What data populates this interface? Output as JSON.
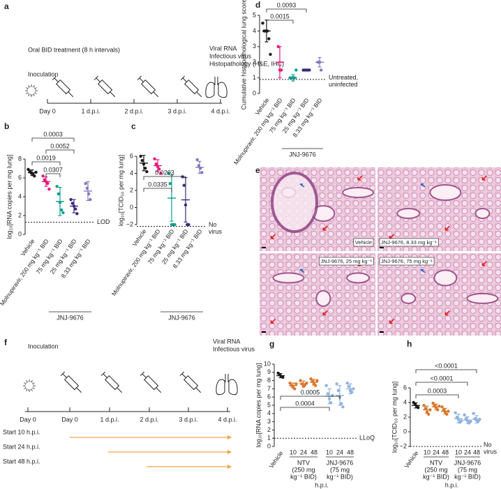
{
  "timeline_a": {
    "letter": "a",
    "treatment": "Oral BID treatment (8 h intervals)",
    "inoculation": "Inoculation",
    "readouts": [
      "Viral RNA",
      "Infectious virus",
      "Histopathology (H&E, IHC)"
    ],
    "days": [
      "Day 0",
      "1 d.p.i.",
      "2 d.p.i.",
      "3 d.p.i.",
      "4 d.p.i."
    ]
  },
  "timeline_f": {
    "letter": "f",
    "inoculation": "Inoculation",
    "readouts": [
      "Viral RNA",
      "Infectious virus"
    ],
    "days": [
      "Day 0",
      "Day 0",
      "1 d.p.i.",
      "2 d.p.i.",
      "3 d.p.i.",
      "4 d.p.i."
    ],
    "starts": [
      "Start 10 h.p.i.",
      "Start 24 h.p.i.",
      "Start 48 h.p.i."
    ],
    "arrow_color": "#f0a640"
  },
  "histology": {
    "letter": "e",
    "tiles": [
      "Vehicle",
      "JNJ-9676, 8.33 mg kg⁻¹",
      "JNJ-9676, 25 mg kg⁻¹",
      "JNJ-9676, 75 mg kg⁻¹"
    ]
  },
  "chart_data": [
    {
      "type": "dot",
      "letter": "b",
      "y_label": "log₁₀[RNA copies per mg lung]",
      "categories": [
        "Vehicle",
        "Molnupiravir, 200 mg kg⁻¹ BID",
        "75 mg kg⁻¹ BID",
        "25 mg kg⁻¹ BID",
        "8.33 mg kg⁻¹ BID"
      ],
      "colors": [
        "#1a1a1a",
        "#e5197a",
        "#0e9e8e",
        "#3a2a78",
        "#8478bd"
      ],
      "points": [
        [
          6.9,
          6.7,
          6.5,
          6.4,
          6.2,
          6.6
        ],
        [
          6.2,
          5.8,
          5.6,
          5.4,
          4.8
        ],
        [
          5.1,
          4.3,
          3.4,
          2.6,
          2.3
        ],
        [
          3.7,
          3.3,
          3.0,
          2.7,
          2.2
        ],
        [
          5.4,
          4.9,
          4.3,
          3.7
        ]
      ],
      "centers": [
        6.55,
        5.6,
        3.5,
        3.0,
        4.6
      ],
      "errors": [
        0.3,
        0.5,
        1.5,
        0.7,
        1.0
      ],
      "ylim": [
        0,
        8
      ],
      "yticks": [
        0,
        2,
        4,
        6,
        8
      ],
      "ref_line": {
        "value": 1.3,
        "label": [
          "LOD"
        ]
      },
      "comparisons": [
        "0.0003",
        "0.0052",
        "0.0019",
        "0.0307"
      ],
      "groups": [
        {
          "label": [
            "JNJ-9676"
          ]
        }
      ]
    },
    {
      "type": "dot",
      "letter": "c",
      "y_label": "log₁₀[TCID₅₀ per mg lung]",
      "categories": [
        "Vehicle",
        "Molnupiravir, 200 mg kg⁻¹ BID",
        "75 mg kg⁻¹ BID",
        "25 mg kg⁻¹ BID",
        "8.33 mg kg⁻¹ BID"
      ],
      "colors": [
        "#1a1a1a",
        "#e5197a",
        "#0e9e8e",
        "#3a2a78",
        "#8478bd"
      ],
      "points": [
        [
          6.0,
          5.5,
          5.1,
          4.6,
          4.2
        ],
        [
          5.7,
          5.1,
          4.8,
          4.5,
          4.0
        ],
        [
          4.0,
          2.8,
          -2.0,
          -2.0,
          -2.0
        ],
        [
          3.6,
          2.6,
          0.3,
          -2.0,
          -2.0
        ],
        [
          5.6,
          4.9,
          4.6,
          4.1
        ]
      ],
      "centers": [
        5.2,
        4.9,
        1.1,
        0.9,
        4.7
      ],
      "errors": [
        0.9,
        0.7,
        2.7,
        2.6,
        0.7
      ],
      "ylim": [
        -2,
        6
      ],
      "yticks": [
        {
          "value": -2,
          "label": "−2"
        },
        0,
        2,
        4,
        6
      ],
      "ref_line": {
        "value": -2.2,
        "label": [
          "No",
          "virus"
        ]
      },
      "comparisons": [
        "0.0203",
        "0.0335"
      ],
      "groups": [
        {
          "label": [
            "JNJ-9676"
          ]
        }
      ]
    },
    {
      "type": "dot",
      "letter": "d",
      "y_label": "Cumulative histopathological lung score",
      "categories": [
        "Vehicle",
        "Molnupiravir, 200 mg kg⁻¹ BID",
        "75 mg kg⁻¹ BID",
        "25 mg kg⁻¹ BID",
        "8.33 mg kg⁻¹ BID"
      ],
      "colors": [
        "#1a1a1a",
        "#e5197a",
        "#0e9e8e",
        "#3a2a78",
        "#8478bd"
      ],
      "points": [
        [
          4.5,
          4.0,
          4.0,
          4.0,
          3.5,
          2.5
        ],
        [
          3.0,
          1.5,
          1.5
        ],
        [
          1.0,
          1.0,
          1.0,
          1.0,
          1.5
        ],
        [
          1.5,
          1.5,
          1.5,
          1.5,
          1.5
        ],
        [
          2.0,
          2.0,
          1.5
        ]
      ],
      "centers": [
        4.0,
        2.0,
        1.0,
        1.5,
        2.0
      ],
      "errors": [
        0.7,
        1.0,
        0.2,
        0,
        0.3
      ],
      "ylim": [
        0,
        5
      ],
      "yticks": [
        0,
        1,
        2,
        3,
        4,
        5
      ],
      "ref_line": {
        "value": 0.9,
        "label": [
          "Untreated,",
          "uninfected"
        ]
      },
      "comparisons": [
        "0.0093",
        "0.0015"
      ],
      "groups": [
        {
          "label": [
            "JNJ-9676"
          ]
        }
      ]
    },
    {
      "type": "dot",
      "letter": "g",
      "y_label": "log₁₀[RNA copies per mg lung]",
      "x_label": "h.p.i.",
      "categories": [
        "Vehicle",
        "10",
        "24",
        "48",
        "10",
        "24",
        "48"
      ],
      "colors": [
        "#1a1a1a",
        "#d9782d",
        "#d9782d",
        "#d9782d",
        "#8fb3de",
        "#8fb3de",
        "#8fb3de"
      ],
      "points": [
        [
          8.9,
          8.7,
          8.5,
          8.4
        ],
        [
          7.7,
          7.4,
          7.2,
          7.0,
          7.6
        ],
        [
          8.0,
          7.6,
          7.3,
          7.5,
          7.7
        ],
        [
          8.2,
          7.9,
          7.6,
          7.4,
          8.0
        ],
        [
          7.4,
          6.4,
          5.8,
          5.3,
          6.2
        ],
        [
          7.6,
          6.8,
          6.0,
          5.2,
          4.8
        ],
        [
          7.7,
          7.3,
          6.8,
          6.6,
          7.0
        ]
      ],
      "centers": [
        8.6,
        7.4,
        7.6,
        7.8,
        6.1,
        6.2,
        7.0
      ],
      "errors": [
        0.25,
        0.3,
        0.35,
        0.35,
        0.9,
        1.2,
        0.6
      ],
      "ylim": [
        0,
        10
      ],
      "yticks": [
        0,
        1,
        2,
        3,
        4,
        5,
        6,
        7,
        8,
        9,
        10
      ],
      "ref_line": {
        "value": 1,
        "label": [
          "LLoQ"
        ]
      },
      "comparisons": [
        "0.0005",
        "0.0004"
      ],
      "groups": [
        {
          "label": [
            "NTV",
            "(250 mg",
            "kg⁻¹ BID)"
          ]
        },
        {
          "label": [
            "JNJ-9676",
            "(75 mg",
            "kg⁻¹ BID)"
          ]
        }
      ]
    },
    {
      "type": "dot",
      "letter": "h",
      "y_label": "log₁₀[TCID₅₀ per mg lung]",
      "x_label": "h.p.i.",
      "categories": [
        "Vehicle",
        "10",
        "24",
        "48",
        "10",
        "24",
        "48"
      ],
      "colors": [
        "#1a1a1a",
        "#d9782d",
        "#d9782d",
        "#d9782d",
        "#8fb3de",
        "#8fb3de",
        "#8fb3de"
      ],
      "points": [
        [
          4.0,
          3.8,
          3.5,
          3.3
        ],
        [
          3.6,
          3.2,
          2.7,
          2.4,
          3.0
        ],
        [
          3.9,
          3.6,
          3.3,
          3.0,
          3.5
        ],
        [
          3.4,
          3.0,
          2.7,
          2.4,
          2.8
        ],
        [
          2.6,
          2.0,
          1.7,
          1.3,
          1.5
        ],
        [
          2.3,
          1.8,
          1.5,
          1.2,
          1.4
        ],
        [
          2.5,
          1.8,
          1.6,
          1.4,
          1.7
        ]
      ],
      "centers": [
        3.6,
        3.0,
        3.4,
        2.8,
        1.8,
        1.6,
        1.7
      ],
      "errors": [
        0.35,
        0.5,
        0.4,
        0.4,
        0.6,
        0.45,
        0.5
      ],
      "ylim": [
        -2,
        6
      ],
      "yticks": [
        {
          "value": -2,
          "label": "−2"
        },
        0,
        2,
        4,
        6
      ],
      "ref_line": {
        "value": -2,
        "label": [
          "No",
          "virus"
        ]
      },
      "comparisons": [
        "<0.0001",
        "<0.0001",
        "0.0003"
      ],
      "groups": [
        {
          "label": [
            "NTV",
            "(250 mg",
            "kg⁻¹ BID)"
          ]
        },
        {
          "label": [
            "JNJ-9676",
            "(75 mg",
            "kg⁻¹ BID)"
          ]
        }
      ]
    }
  ]
}
